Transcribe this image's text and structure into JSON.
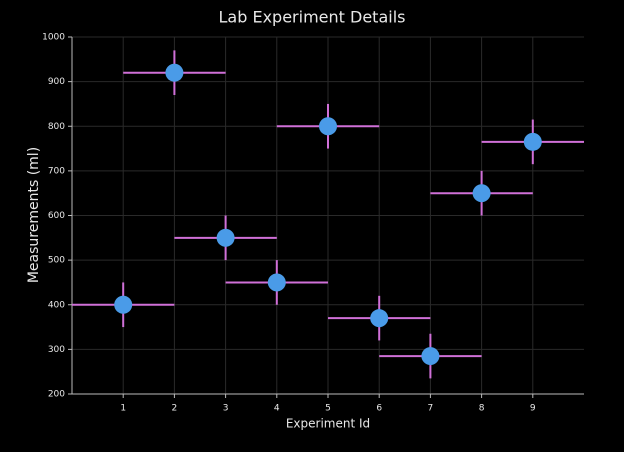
{
  "chart_data": {
    "type": "scatter",
    "title": "Lab Experiment Details",
    "x_label": "Experiment Id",
    "y_label": "Measurements (ml)",
    "x": [
      1,
      2,
      3,
      4,
      5,
      6,
      7,
      8,
      9
    ],
    "values": [
      400,
      920,
      550,
      450,
      800,
      370,
      285,
      650,
      765
    ],
    "xerr": [
      1,
      1,
      1,
      1,
      1,
      1,
      1,
      1,
      1
    ],
    "yerr": [
      50,
      50,
      50,
      50,
      50,
      50,
      50,
      50,
      50
    ],
    "color": "#4a9be8",
    "error_color": "#d070d8",
    "xlim": [
      0,
      10
    ],
    "xticks": [
      1,
      2,
      3,
      4,
      5,
      6,
      7,
      8,
      9
    ],
    "ylim": [
      200,
      1000
    ],
    "yticks": [
      200,
      300,
      400,
      500,
      600,
      700,
      800,
      900,
      1000
    ],
    "grid": true
  }
}
